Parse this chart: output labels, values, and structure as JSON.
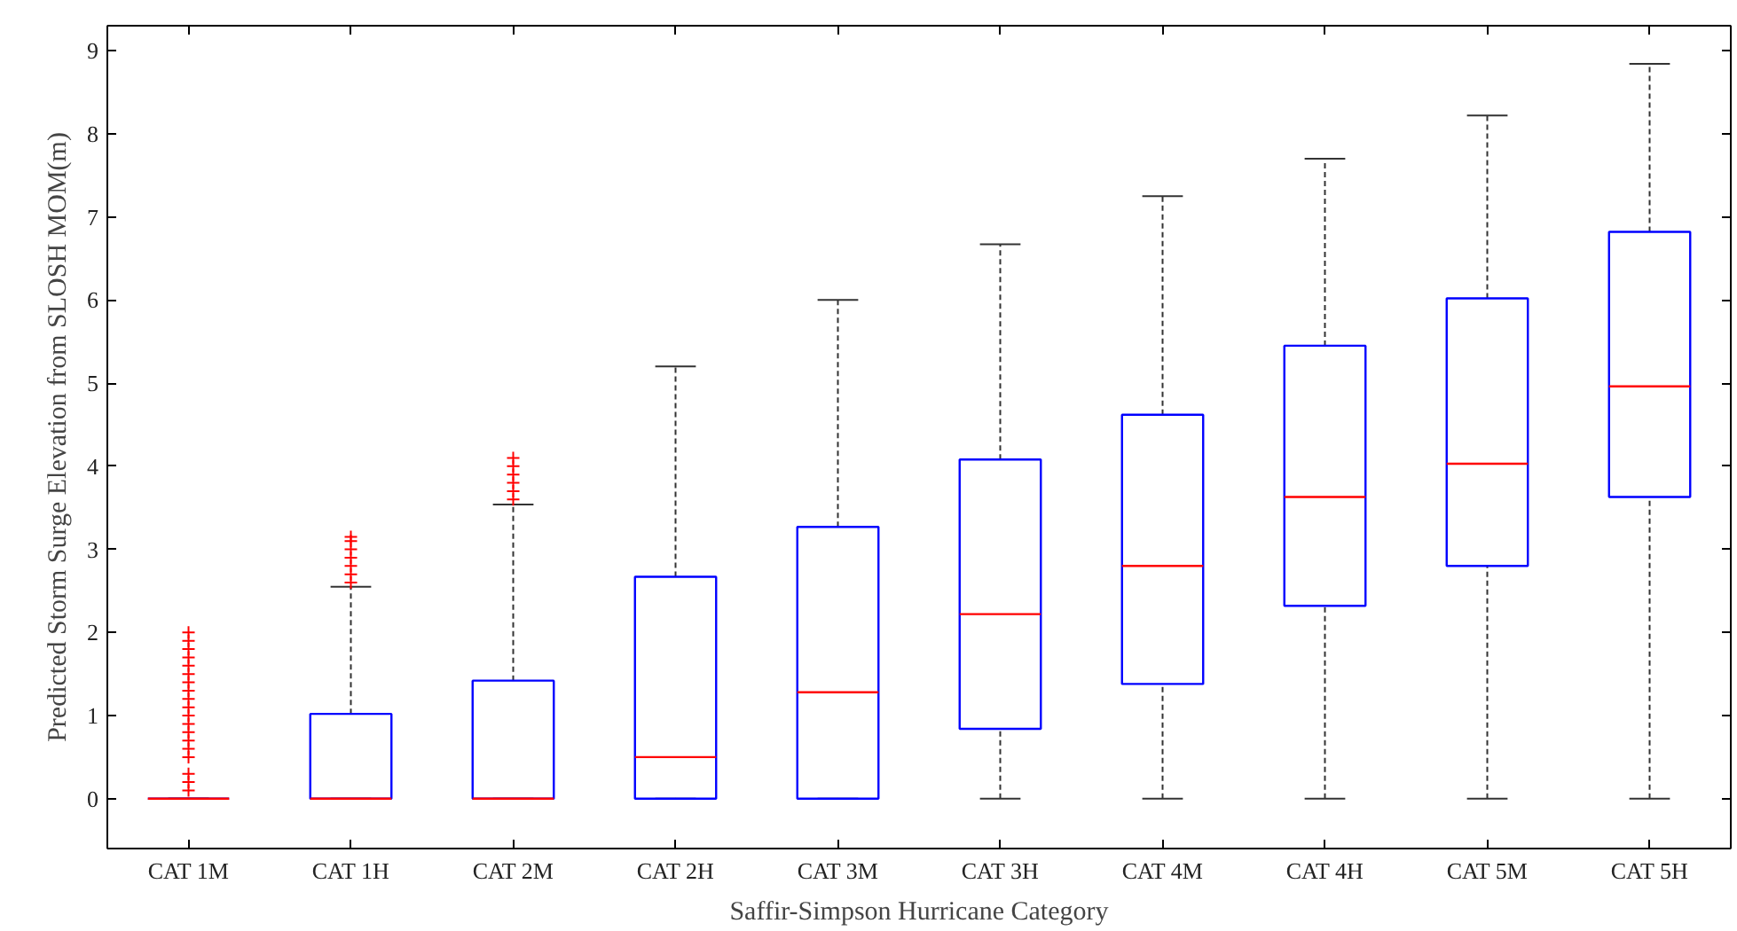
{
  "chart_data": {
    "type": "box",
    "xlabel": "Saffir-Simpson Hurricane Category",
    "ylabel": "Predicted Storm Surge Elevation from SLOSH MOM(m)",
    "categories": [
      "CAT 1M",
      "CAT 1H",
      "CAT 2M",
      "CAT 2H",
      "CAT 3M",
      "CAT 3H",
      "CAT 4M",
      "CAT 4H",
      "CAT 5M",
      "CAT 5H"
    ],
    "color": "#0000ff",
    "marker": "cross",
    "grid": false,
    "ylim": [
      -0.6,
      9.3
    ],
    "yticks": [
      0,
      1,
      2,
      3,
      4,
      5,
      6,
      7,
      8,
      9
    ],
    "boxes": [
      {
        "low": 0,
        "q1": 0,
        "median": 0,
        "q3": 0,
        "high": 0,
        "outliers": [
          0.1,
          0.2,
          0.3,
          0.5,
          0.6,
          0.7,
          0.8,
          0.9,
          1.0,
          1.1,
          1.2,
          1.3,
          1.4,
          1.5,
          1.6,
          1.7,
          1.8,
          1.9,
          2.0
        ]
      },
      {
        "low": 0,
        "q1": 0,
        "median": 0,
        "q3": 1.02,
        "high": 2.55,
        "outliers": [
          2.6,
          2.7,
          2.8,
          2.9,
          3.0,
          3.1,
          3.15
        ]
      },
      {
        "low": 0,
        "q1": 0,
        "median": 0,
        "q3": 1.42,
        "high": 3.54,
        "outliers": [
          3.6,
          3.7,
          3.8,
          3.9,
          4.0,
          4.1
        ]
      },
      {
        "low": 0,
        "q1": 0,
        "median": 0.5,
        "q3": 2.67,
        "high": 5.2
      },
      {
        "low": 0,
        "q1": 0,
        "median": 1.28,
        "q3": 3.27,
        "high": 6.0
      },
      {
        "low": 0,
        "q1": 0.84,
        "median": 2.22,
        "q3": 4.08,
        "high": 6.67
      },
      {
        "low": 0,
        "q1": 1.38,
        "median": 2.8,
        "q3": 4.62,
        "high": 7.25
      },
      {
        "low": 0,
        "q1": 2.32,
        "median": 3.63,
        "q3": 5.45,
        "high": 7.7
      },
      {
        "low": 0,
        "q1": 2.8,
        "median": 4.03,
        "q3": 6.02,
        "high": 8.22
      },
      {
        "low": 0,
        "q1": 3.63,
        "median": 4.96,
        "q3": 6.82,
        "high": 8.84
      }
    ]
  }
}
